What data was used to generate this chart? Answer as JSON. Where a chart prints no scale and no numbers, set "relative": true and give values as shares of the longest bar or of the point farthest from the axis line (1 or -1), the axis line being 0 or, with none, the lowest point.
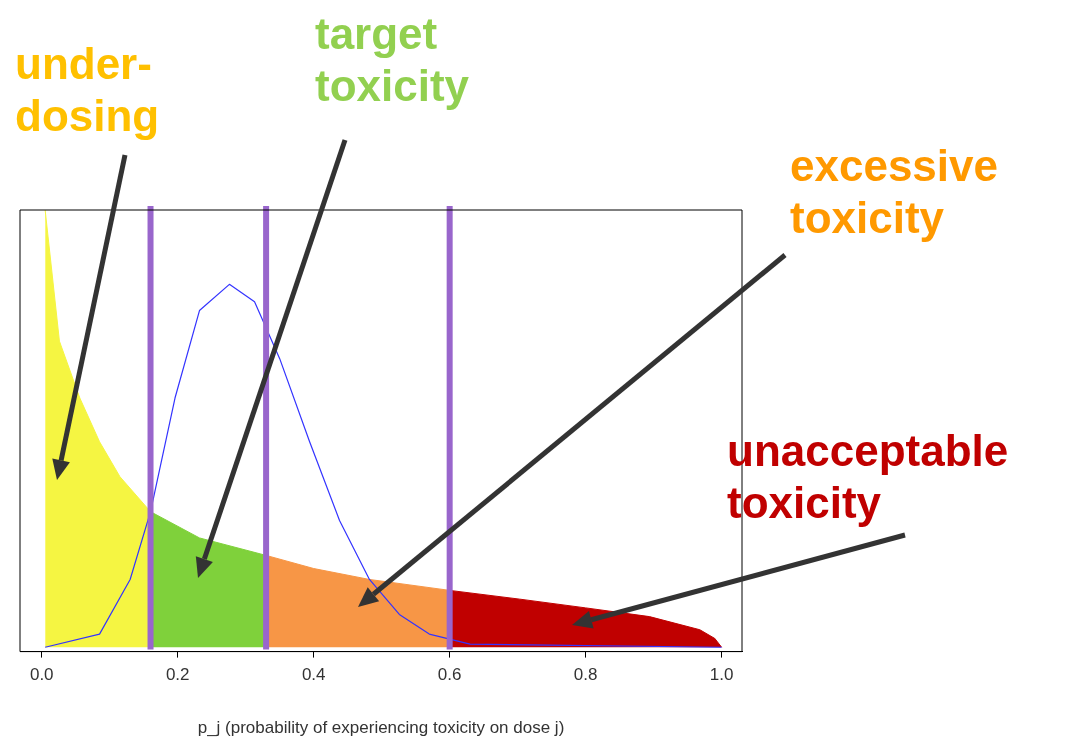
{
  "chart_data": {
    "type": "area",
    "relative": true,
    "xlabel": "p_j (probability of experiencing toxicity on dose j)",
    "xlim": [
      -0.032,
      1.03
    ],
    "xticks": [
      {
        "value": 0,
        "label": "0.0"
      },
      {
        "value": 0.2,
        "label": "0.2"
      },
      {
        "value": 0.4,
        "label": "0.4"
      },
      {
        "value": 0.6,
        "label": "0.6"
      },
      {
        "value": 0.8,
        "label": "0.8"
      },
      {
        "value": 1,
        "label": "1.0"
      }
    ],
    "series": [
      {
        "color": "#f5f542",
        "x": [
          0.005,
          0.026,
          0.056,
          0.085,
          0.115,
          0.16
        ],
        "values": [
          1.0,
          0.7,
          0.57,
          0.47,
          0.39,
          0.31
        ]
      },
      {
        "color": "#7fd13b",
        "x": [
          0.16,
          0.232,
          0.33
        ],
        "values": [
          0.31,
          0.25,
          0.21
        ]
      },
      {
        "color": "#f79646",
        "x": [
          0.33,
          0.4,
          0.482,
          0.6
        ],
        "values": [
          0.21,
          0.18,
          0.155,
          0.13
        ]
      },
      {
        "color": "#c00000",
        "x": [
          0.6,
          0.703,
          0.8,
          0.894,
          0.968,
          0.99,
          1.0
        ],
        "values": [
          0.13,
          0.11,
          0.09,
          0.07,
          0.04,
          0.02,
          0
        ]
      },
      {
        "type": "line",
        "color": "#3333ff",
        "x": [
          0.005,
          0.085,
          0.13,
          0.16,
          0.196,
          0.232,
          0.276,
          0.313,
          0.35,
          0.394,
          0.438,
          0.482,
          0.526,
          0.57,
          0.63,
          1.0
        ],
        "values": [
          0,
          0.03,
          0.155,
          0.31,
          0.57,
          0.77,
          0.83,
          0.79,
          0.66,
          0.47,
          0.29,
          0.155,
          0.075,
          0.03,
          0.007,
          0
        ]
      }
    ],
    "ref_lines": [
      {
        "axis": "x",
        "value": 0.16,
        "color": "#9966cc"
      },
      {
        "axis": "x",
        "value": 0.33,
        "color": "#9966cc"
      },
      {
        "axis": "x",
        "value": 0.6,
        "color": "#9966cc"
      }
    ],
    "annotations": [
      "under-dosing",
      "target toxicity",
      "excessive toxicity",
      "unacceptable toxicity"
    ],
    "grid": false,
    "legend": false,
    "marker": "none"
  }
}
